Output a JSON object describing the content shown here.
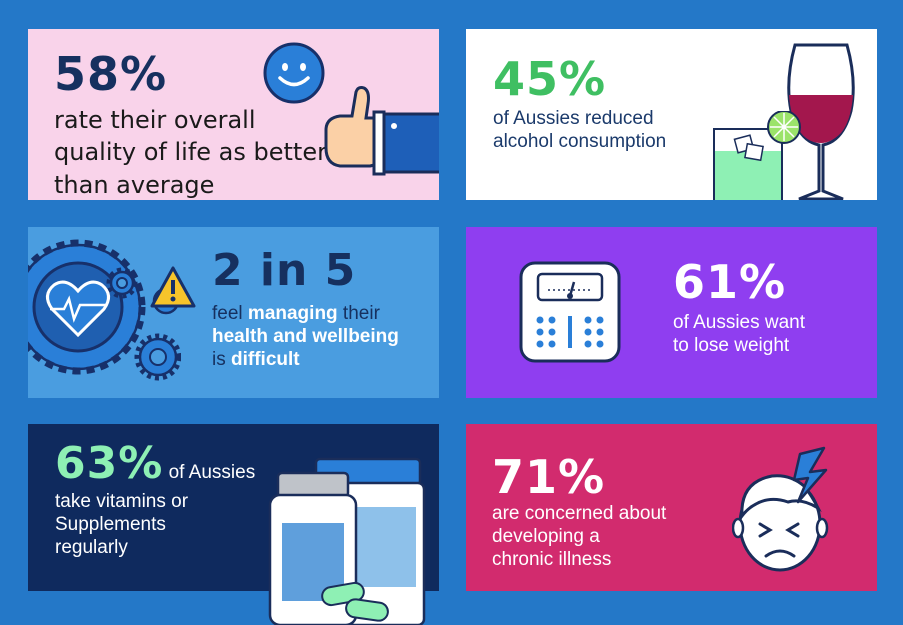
{
  "cards": {
    "quality": {
      "stat": "58%",
      "line1": "rate their overall",
      "line2": "quality of life as better",
      "line3": "than average"
    },
    "alcohol": {
      "stat": "45%",
      "line1": "of Aussies reduced",
      "line2": "alcohol consumption"
    },
    "managing": {
      "stat": "2 in 5",
      "l1a": "feel ",
      "l1b": "managing",
      "l1c": " their",
      "l2": "health and wellbeing",
      "l3a": "is ",
      "l3b": "difficult"
    },
    "weight": {
      "stat": "61%",
      "line1": "of Aussies want",
      "line2": "to lose weight"
    },
    "vitamins": {
      "stat": "63%",
      "line1": " of Aussies",
      "line2": "take vitamins or",
      "line3": "Supplements",
      "line4": "regularly"
    },
    "chronic": {
      "stat": "71%",
      "line1": "are concerned about",
      "line2": "developing a",
      "line3": "chronic illness"
    }
  },
  "colors": {
    "background": "#2478c8",
    "pink_card": "#f9d3ea",
    "white_card": "#ffffff",
    "light_blue_card": "#4a9de0",
    "purple_card": "#8f3ef0",
    "navy_card": "#0f2a5e",
    "magenta_card": "#d22b6e",
    "green_accent": "#3fbf62",
    "mint_accent": "#8ef0b4",
    "navy_text": "#16305f"
  },
  "icons": [
    "smiley-icon",
    "thumbs-up-icon",
    "wine-glass-icon",
    "cocktail-glass-icon",
    "gears-heart-icon",
    "warning-icon",
    "scale-icon",
    "vitamin-bottles-icon",
    "headache-face-icon"
  ]
}
